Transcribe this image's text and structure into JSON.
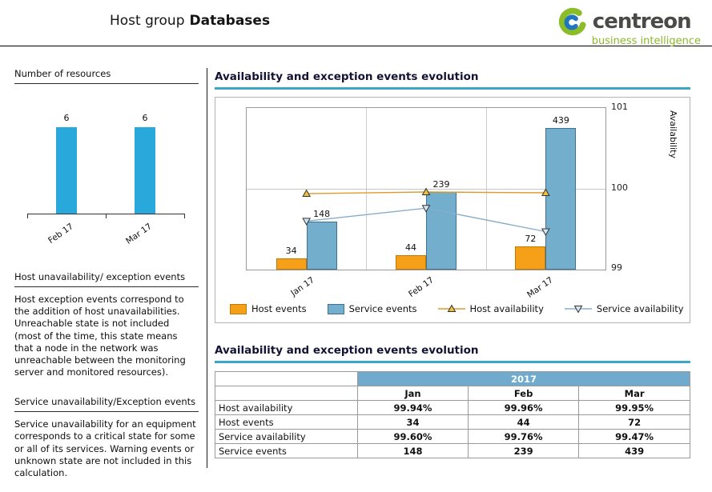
{
  "header": {
    "title_prefix": "Host group",
    "title_bold": "Databases",
    "logo": {
      "text": "centreon",
      "subtext": "business intelligence",
      "green": "#8BBD28",
      "blue": "#2077BE",
      "text_color": "#4A4A49"
    }
  },
  "sidebar": {
    "resources_title": "Number of resources",
    "host_section_title": "Host unavailability/ exception events",
    "host_section_body": "Host exception events correspond to the addition of host unavailabilities. Unreachable state is not included (most of the time, this state means that a node in the network was unreachable between the monitoring server and monitored resources).",
    "service_section_title": "Service unavailability/Exception events",
    "service_section_body": "Service unavailability for an equipment corresponds to a critical state for some or all of its services. Warning events or unknown state are not included in this calculation."
  },
  "main": {
    "chart_section_title": "Availability and exception events evolution",
    "table_section_title": "Availability and exception events evolution",
    "accent_color": "#3BA6C8",
    "table": {
      "year_header": "2017",
      "columns": [
        "Jan",
        "Feb",
        "Mar"
      ],
      "rows": [
        {
          "label": "Host availability",
          "values": [
            "99.94%",
            "99.96%",
            "99.95%"
          ]
        },
        {
          "label": "Host events",
          "values": [
            "34",
            "44",
            "72"
          ]
        },
        {
          "label": "Service availability",
          "values": [
            "99.60%",
            "99.76%",
            "99.47%"
          ]
        },
        {
          "label": "Service events",
          "values": [
            "148",
            "239",
            "439"
          ]
        }
      ]
    }
  },
  "chart_data": [
    {
      "type": "bar",
      "title": "Number of resources",
      "categories": [
        "Feb 17",
        "Mar 17"
      ],
      "values": [
        6,
        6
      ],
      "ylim": [
        0,
        7
      ],
      "bar_color": "#29A8DB",
      "grid": false
    },
    {
      "type": "combo",
      "title": "Availability and exception events evolution",
      "categories": [
        "Jan 17",
        "Feb 17",
        "Mar 17"
      ],
      "series": [
        {
          "name": "Host events",
          "type": "bar",
          "values": [
            34,
            44,
            72
          ],
          "color": "#F6A01A",
          "border": "#C07A00"
        },
        {
          "name": "Service events",
          "type": "bar",
          "values": [
            148,
            239,
            439
          ],
          "color": "#74AECD",
          "border": "#3F7196"
        },
        {
          "name": "Host availability",
          "type": "line",
          "values": [
            99.94,
            99.96,
            99.95
          ],
          "color": "#DF9A2B",
          "marker": "triangle-up",
          "marker_fill": "#F0C03C"
        },
        {
          "name": "Service availability",
          "type": "line",
          "values": [
            99.6,
            99.76,
            99.47
          ],
          "color": "#86AECB",
          "marker": "triangle-down",
          "marker_fill": "#D6E4F0"
        }
      ],
      "bar_axis_max": 500,
      "y2label": "Availability",
      "y2lim": [
        99,
        101
      ],
      "y2ticks": [
        101,
        100,
        99
      ],
      "legend_position": "bottom",
      "grid": true
    }
  ]
}
